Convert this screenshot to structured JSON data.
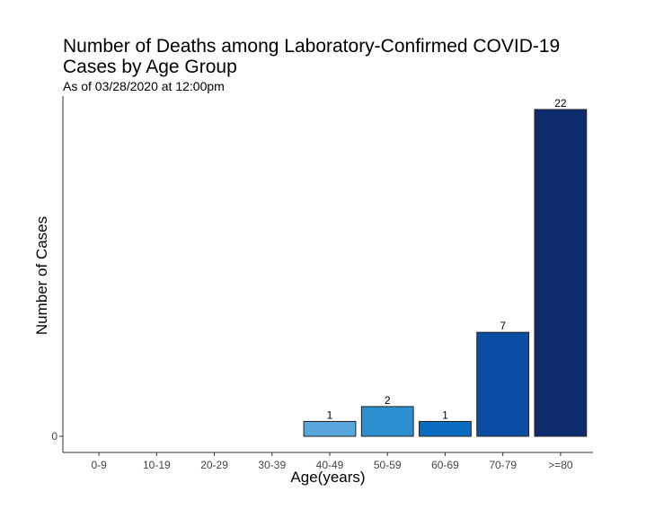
{
  "chart_data": {
    "type": "bar",
    "title_line1": "Number of Deaths among Laboratory-Confirmed COVID-19",
    "title_line2": "Cases by Age Group",
    "subtitle": "As of 03/28/2020 at 12:00pm",
    "xlabel": "Age(years)",
    "ylabel": "Number of Cases",
    "categories": [
      "0-9",
      "10-19",
      "20-29",
      "30-39",
      "40-49",
      "50-59",
      "60-69",
      "70-79",
      ">=80"
    ],
    "values": [
      0,
      0,
      0,
      0,
      1,
      2,
      1,
      7,
      22
    ],
    "data_labels": [
      "",
      "",
      "",
      "",
      "1",
      "2",
      "1",
      "7",
      "22"
    ],
    "y_ticks": [
      0
    ],
    "y_tick_labels": [
      "0"
    ],
    "ylim": [
      0,
      23.1
    ],
    "bar_colors": [
      "#c6dbef",
      "#9ecae1",
      "#6baed6",
      "#4292c6",
      "#5aa8db",
      "#2b8fd0",
      "#0a6cc0",
      "#0a4ea3",
      "#0c2c6e"
    ],
    "grid": false,
    "legend": "none"
  }
}
